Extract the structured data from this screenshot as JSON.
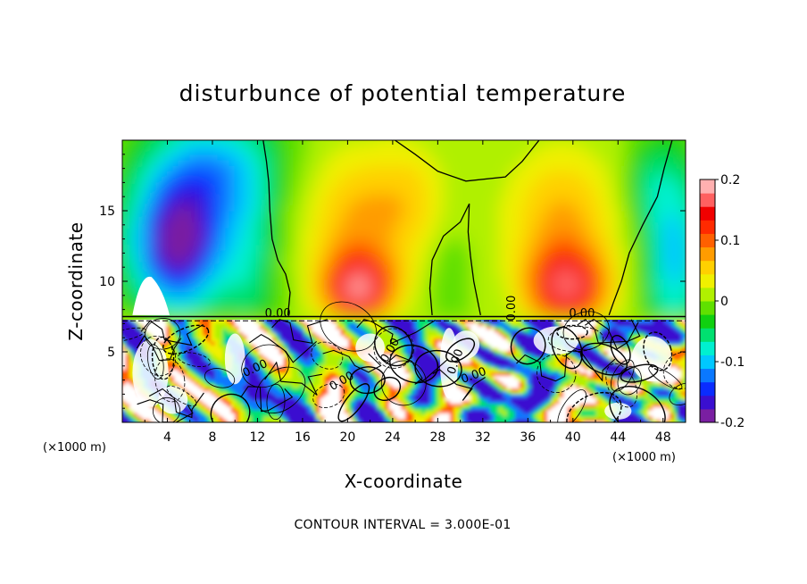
{
  "chart_data": {
    "type": "heatmap",
    "title": "disturbunce of potential temperature",
    "xlabel": "X-coordinate",
    "ylabel": "Z-coordinate",
    "x_unit_label_left": "(×1000 m)",
    "x_unit_label_right": "(×1000 m)",
    "xlim": [
      0,
      50
    ],
    "ylim": [
      0,
      20
    ],
    "x_ticks": [
      "4",
      "8",
      "12",
      "16",
      "20",
      "24",
      "28",
      "32",
      "36",
      "40",
      "44",
      "48"
    ],
    "y_ticks": [
      "5",
      "10",
      "15"
    ],
    "colorbar": {
      "range": [
        -0.2,
        0.2
      ],
      "tick_labels": [
        "0.2",
        "0.1",
        "0",
        "-0.1",
        "-0.2"
      ],
      "colors": [
        "#7a1fa2",
        "#3a0fd0",
        "#0a2cff",
        "#0a78ff",
        "#00c8ff",
        "#00f0d0",
        "#00e070",
        "#10d010",
        "#60e000",
        "#b0f000",
        "#f0f000",
        "#ffd000",
        "#ff9c00",
        "#ff6000",
        "#ff2a00",
        "#f00000",
        "#ff6060",
        "#ffb0b0"
      ]
    },
    "contour_labels": [
      "0.00",
      "0.00",
      "0.00",
      "0.00",
      "0.00",
      "0.00",
      "0.00",
      "0.00"
    ],
    "footer": "CONTOUR INTERVAL = 3.000E-01"
  }
}
